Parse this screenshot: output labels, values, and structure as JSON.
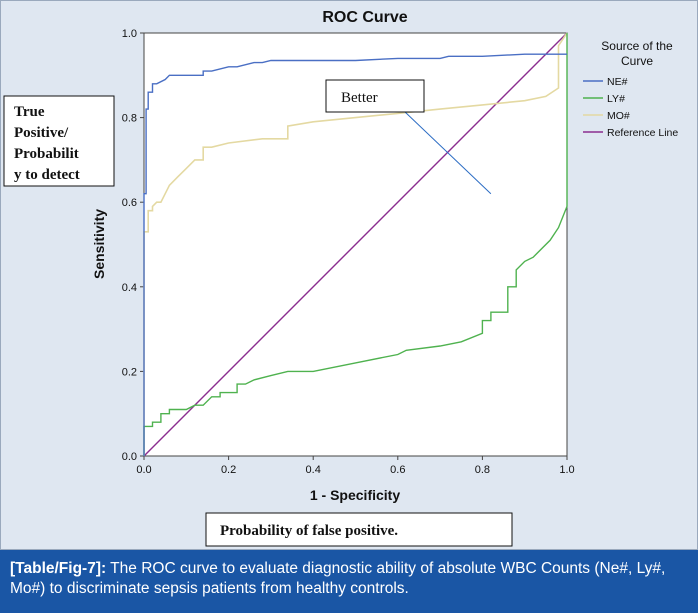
{
  "chart_data": {
    "type": "line",
    "title": "ROC Curve",
    "xlabel": "1 - Specificity",
    "ylabel": "Sensitivity",
    "xlim": [
      0,
      1
    ],
    "ylim": [
      0,
      1
    ],
    "x_ticks": [
      "0.0",
      "0.2",
      "0.4",
      "0.6",
      "0.8",
      "1.0"
    ],
    "y_ticks": [
      "0.0",
      "0.2",
      "0.4",
      "0.6",
      "0.8",
      "1.0"
    ],
    "grid": false,
    "legend_title": "Source of the Curve",
    "series": [
      {
        "name": "NE#",
        "color": "#4a6fc4",
        "x": [
          0.0,
          0.0,
          0.005,
          0.005,
          0.01,
          0.01,
          0.02,
          0.02,
          0.03,
          0.05,
          0.06,
          0.1,
          0.14,
          0.14,
          0.16,
          0.2,
          0.22,
          0.26,
          0.28,
          0.3,
          0.4,
          0.5,
          0.6,
          0.7,
          0.72,
          0.8,
          0.9,
          0.96,
          1.0
        ],
        "y": [
          0.0,
          0.62,
          0.62,
          0.82,
          0.82,
          0.86,
          0.86,
          0.88,
          0.88,
          0.89,
          0.9,
          0.9,
          0.9,
          0.91,
          0.91,
          0.92,
          0.92,
          0.93,
          0.93,
          0.935,
          0.935,
          0.935,
          0.94,
          0.94,
          0.945,
          0.945,
          0.95,
          0.95,
          0.95
        ]
      },
      {
        "name": "LY#",
        "color": "#4fb24f",
        "x": [
          0.0,
          0.0,
          0.02,
          0.02,
          0.04,
          0.04,
          0.06,
          0.06,
          0.1,
          0.12,
          0.14,
          0.16,
          0.18,
          0.18,
          0.2,
          0.22,
          0.22,
          0.24,
          0.26,
          0.3,
          0.34,
          0.4,
          0.5,
          0.6,
          0.62,
          0.7,
          0.75,
          0.8,
          0.8,
          0.82,
          0.82,
          0.86,
          0.86,
          0.88,
          0.88,
          0.9,
          0.92,
          0.94,
          0.96,
          0.98,
          1.0,
          1.0
        ],
        "y": [
          0.0,
          0.07,
          0.07,
          0.08,
          0.08,
          0.1,
          0.1,
          0.11,
          0.11,
          0.12,
          0.12,
          0.14,
          0.14,
          0.15,
          0.15,
          0.15,
          0.17,
          0.17,
          0.18,
          0.19,
          0.2,
          0.2,
          0.22,
          0.24,
          0.25,
          0.26,
          0.27,
          0.29,
          0.32,
          0.32,
          0.34,
          0.34,
          0.4,
          0.4,
          0.44,
          0.46,
          0.47,
          0.49,
          0.51,
          0.54,
          0.59,
          1.0
        ]
      },
      {
        "name": "MO#",
        "color": "#e4d9a2",
        "x": [
          0.0,
          0.0,
          0.01,
          0.01,
          0.02,
          0.02,
          0.03,
          0.04,
          0.05,
          0.06,
          0.08,
          0.1,
          0.12,
          0.14,
          0.14,
          0.16,
          0.2,
          0.28,
          0.34,
          0.34,
          0.4,
          0.5,
          0.6,
          0.7,
          0.8,
          0.9,
          0.95,
          0.98,
          0.98,
          1.0
        ],
        "y": [
          0.0,
          0.53,
          0.53,
          0.58,
          0.58,
          0.59,
          0.6,
          0.6,
          0.62,
          0.64,
          0.66,
          0.68,
          0.7,
          0.7,
          0.73,
          0.73,
          0.74,
          0.75,
          0.75,
          0.78,
          0.79,
          0.8,
          0.81,
          0.82,
          0.83,
          0.84,
          0.85,
          0.87,
          0.97,
          1.0
        ]
      },
      {
        "name": "Reference Line",
        "color": "#8b2e8f",
        "x": [
          0.0,
          1.0
        ],
        "y": [
          0.0,
          1.0
        ]
      }
    ],
    "annotations": {
      "better_label": "Better",
      "true_positive_note": [
        "True",
        "Positive/",
        "Probabilit",
        "y to detect"
      ],
      "false_positive_note": "Probability of false positive.",
      "pointer_color": "#2b6cc4",
      "pointer_from": [
        0.61,
        0.82
      ],
      "pointer_to": [
        0.82,
        0.62
      ]
    }
  },
  "caption": {
    "label": "[Table/Fig-7]:",
    "text": " The ROC curve to evaluate diagnostic ability of absolute WBC Counts (Ne#, Ly#, Mo#) to discriminate sepsis patients from healthy controls."
  },
  "colors": {
    "panel_bg": "#dfe7f1",
    "plot_bg": "#ffffff",
    "caption_bg": "#1a56a5",
    "caption_text": "#ffffff"
  }
}
